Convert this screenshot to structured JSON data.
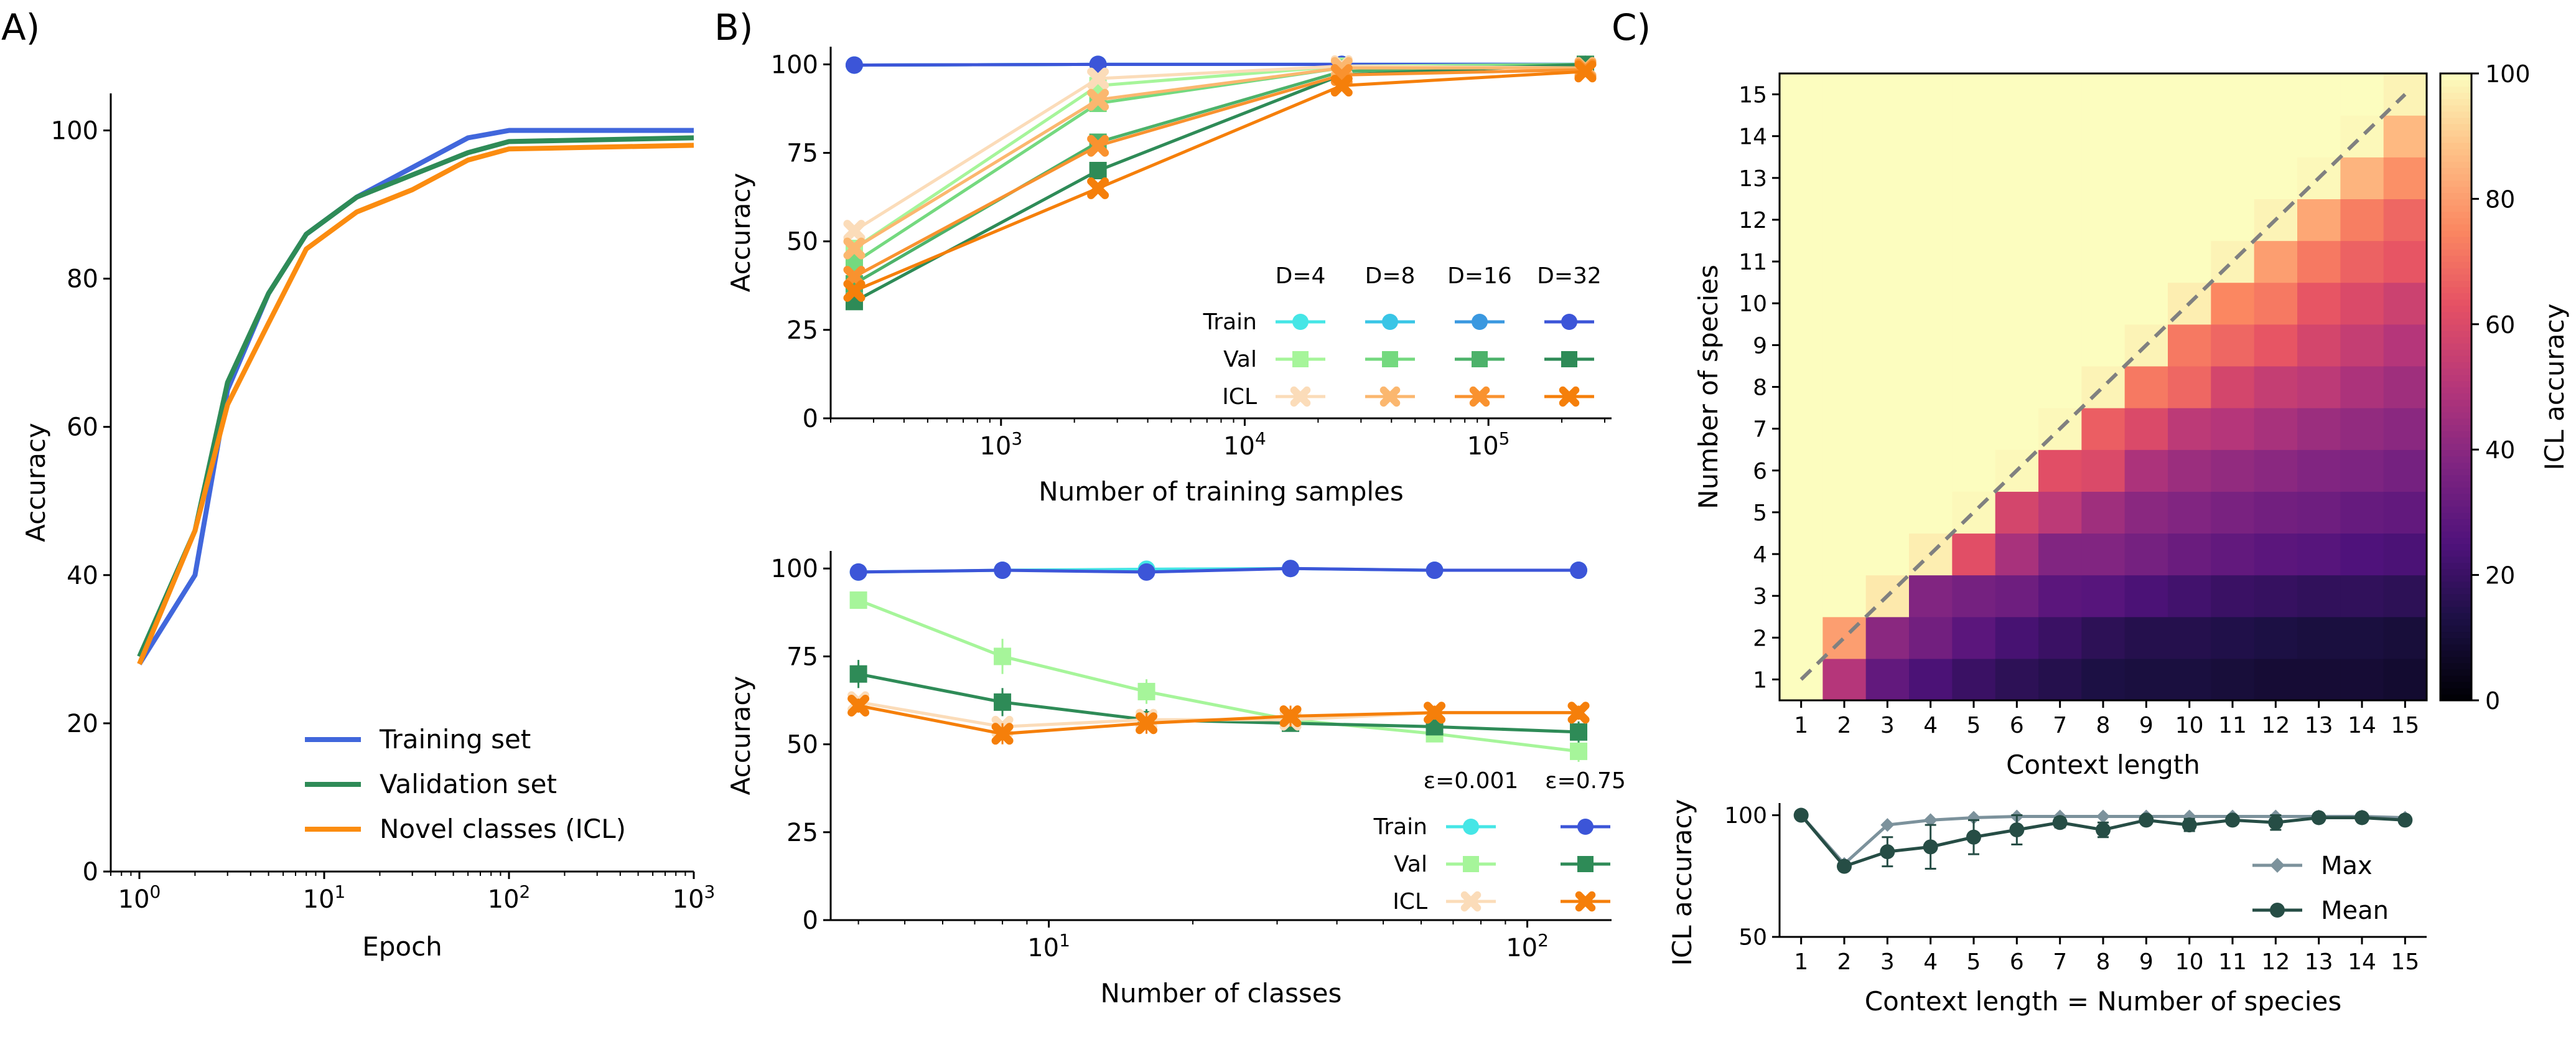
{
  "panel_labels": {
    "a": "A)",
    "b": "B)",
    "c": "C)"
  },
  "colors": {
    "train": [
      "#45e6e6",
      "#39c5e6",
      "#3a98e0",
      "#3c55d8"
    ],
    "val": [
      "#a6f59a",
      "#74d97f",
      "#4cb26a",
      "#2e8b57"
    ],
    "icl": [
      "#fbdcb9",
      "#fbb76f",
      "#f9922f",
      "#f57f0a"
    ],
    "panelA": {
      "train": "#4167dc",
      "val": "#2e8b57",
      "icl": "#fb8c10"
    },
    "mean": "#264d45",
    "max": "#7c929c",
    "diag": "#808080"
  },
  "chart_data": [
    {
      "id": "A",
      "type": "line",
      "xlabel": "Epoch",
      "ylabel": "Accuracy",
      "xscale": "log",
      "xlim": [
        0.7,
        1000
      ],
      "ylim": [
        0,
        105
      ],
      "yticks": [
        0,
        20,
        40,
        60,
        80,
        100
      ],
      "xtick_labels": [
        {
          "base": "10",
          "exp": "0"
        },
        {
          "base": "10",
          "exp": "1"
        },
        {
          "base": "10",
          "exp": "2"
        },
        {
          "base": "10",
          "exp": "3"
        }
      ],
      "legend": [
        "Training set",
        "Validation set",
        "Novel classes (ICL)"
      ],
      "legend_loc": "lower-right",
      "series": [
        {
          "group": "train",
          "x": [
            1,
            2,
            3,
            5,
            8,
            15,
            30,
            60,
            100,
            1000
          ],
          "y": [
            28,
            40,
            65,
            78,
            86,
            91,
            95,
            99,
            100,
            100
          ]
        },
        {
          "group": "val",
          "x": [
            1,
            2,
            3,
            5,
            8,
            15,
            30,
            60,
            100,
            1000
          ],
          "y": [
            29,
            46,
            66,
            78,
            86,
            91,
            94,
            97,
            98.5,
            99
          ]
        },
        {
          "group": "icl",
          "x": [
            1,
            2,
            3,
            5,
            8,
            15,
            30,
            60,
            100,
            1000
          ],
          "y": [
            28,
            46,
            63,
            74,
            84,
            89,
            92,
            96,
            97.5,
            98
          ]
        }
      ]
    },
    {
      "id": "B1",
      "type": "line",
      "xlabel": "Number of training samples",
      "ylabel": "Accuracy",
      "xscale": "log",
      "xlim": [
        200,
        320000
      ],
      "ylim": [
        0,
        105
      ],
      "yticks": [
        0,
        25,
        50,
        75,
        100
      ],
      "xtick_labels": [
        {
          "base": "10",
          "exp": "3"
        },
        {
          "base": "10",
          "exp": "4"
        },
        {
          "base": "10",
          "exp": "5"
        }
      ],
      "legend_cols": [
        "D=4",
        "D=8",
        "D=16",
        "D=32"
      ],
      "legend_rows": [
        "Train",
        "Val",
        "ICL"
      ],
      "x": [
        250,
        2500,
        25000,
        250000
      ],
      "series": [
        {
          "group": "train",
          "shade": 0,
          "y": [
            99.8,
            100,
            100,
            100
          ]
        },
        {
          "group": "train",
          "shade": 1,
          "y": [
            99.8,
            100,
            100,
            100
          ]
        },
        {
          "group": "train",
          "shade": 2,
          "y": [
            99.8,
            100,
            100,
            100
          ]
        },
        {
          "group": "train",
          "shade": 3,
          "y": [
            99.8,
            100,
            100,
            100
          ]
        },
        {
          "group": "val",
          "shade": 0,
          "y": [
            48,
            94,
            99.5,
            100
          ]
        },
        {
          "group": "val",
          "shade": 1,
          "y": [
            44,
            89,
            99,
            100
          ]
        },
        {
          "group": "val",
          "shade": 2,
          "y": [
            38,
            78,
            98,
            100
          ]
        },
        {
          "group": "val",
          "shade": 3,
          "y": [
            33,
            70,
            97,
            100
          ]
        },
        {
          "group": "icl",
          "shade": 0,
          "y": [
            53,
            96,
            99.5,
            99
          ]
        },
        {
          "group": "icl",
          "shade": 1,
          "y": [
            48,
            90,
            99,
            99
          ]
        },
        {
          "group": "icl",
          "shade": 2,
          "y": [
            40,
            77,
            97,
            98.5
          ]
        },
        {
          "group": "icl",
          "shade": 3,
          "y": [
            36,
            65,
            94,
            98
          ]
        }
      ]
    },
    {
      "id": "B2",
      "type": "line",
      "xlabel": "Number of classes",
      "ylabel": "Accuracy",
      "xscale": "log",
      "xlim": [
        3.5,
        150
      ],
      "ylim": [
        0,
        105
      ],
      "yticks": [
        0,
        25,
        50,
        75,
        100
      ],
      "xtick_labels": [
        {
          "base": "10",
          "exp": "1"
        },
        {
          "base": "10",
          "exp": "2"
        }
      ],
      "legend_cols": [
        "ε=0.001",
        "ε=0.75"
      ],
      "legend_rows": [
        "Train",
        "Val",
        "ICL"
      ],
      "x": [
        4,
        8,
        16,
        32,
        64,
        128
      ],
      "series": [
        {
          "group": "train",
          "shade": 0,
          "y": [
            99,
            99.5,
            99.8,
            100,
            99.5,
            99.5
          ]
        },
        {
          "group": "train",
          "shade": 3,
          "y": [
            99,
            99.5,
            99,
            100,
            99.5,
            99.5
          ]
        },
        {
          "group": "val",
          "shade": 0,
          "y": [
            91,
            75,
            65,
            57,
            53,
            48
          ],
          "err": [
            2,
            5,
            3.5,
            2,
            2,
            3
          ]
        },
        {
          "group": "val",
          "shade": 3,
          "y": [
            70,
            62,
            57,
            56,
            55,
            53.5
          ],
          "err": [
            4,
            4,
            3,
            2,
            2,
            3
          ]
        },
        {
          "group": "icl",
          "shade": 0,
          "y": [
            62,
            55,
            57,
            57,
            59,
            59
          ]
        },
        {
          "group": "icl",
          "shade": 3,
          "y": [
            61,
            53,
            56,
            58,
            59,
            59
          ],
          "err": [
            2,
            3,
            3,
            3,
            2,
            2
          ]
        }
      ]
    },
    {
      "id": "C1",
      "type": "heatmap",
      "xlabel": "Context length",
      "ylabel": "Number of species",
      "colorbar_label": "ICL accuracy",
      "colorbar_ticks": [
        0,
        20,
        40,
        60,
        80,
        100
      ],
      "labels": [
        1,
        2,
        3,
        4,
        5,
        6,
        7,
        8,
        9,
        10,
        11,
        12,
        13,
        14,
        15
      ],
      "fill_above_diagonal": 100,
      "rows": [
        [
          100,
          50,
          30,
          24,
          20,
          17,
          15,
          13,
          12,
          12,
          11,
          10,
          10,
          10,
          9
        ],
        [
          null,
          80,
          40,
          34,
          28,
          23,
          20,
          17,
          15,
          15,
          14,
          13,
          12,
          12,
          11
        ],
        [
          null,
          null,
          96,
          38,
          35,
          33,
          28,
          27,
          24,
          22,
          20,
          19,
          18,
          18,
          17
        ],
        [
          null,
          null,
          null,
          97,
          62,
          47,
          38,
          38,
          35,
          32,
          30,
          28,
          27,
          25,
          24
        ],
        [
          null,
          null,
          null,
          null,
          99,
          58,
          52,
          45,
          40,
          38,
          36,
          34,
          33,
          31,
          30
        ],
        [
          null,
          null,
          null,
          null,
          null,
          99,
          62,
          60,
          48,
          44,
          42,
          40,
          38,
          37,
          35
        ],
        [
          null,
          null,
          null,
          null,
          null,
          null,
          99,
          66,
          60,
          52,
          50,
          47,
          44,
          42,
          40
        ],
        [
          null,
          null,
          null,
          null,
          null,
          null,
          null,
          98,
          72,
          68,
          58,
          54,
          52,
          48,
          45
        ],
        [
          null,
          null,
          null,
          null,
          null,
          null,
          null,
          null,
          98,
          72,
          68,
          64,
          58,
          54,
          50
        ],
        [
          null,
          null,
          null,
          null,
          null,
          null,
          null,
          null,
          null,
          97,
          75,
          72,
          64,
          60,
          56
        ],
        [
          null,
          null,
          null,
          null,
          null,
          null,
          null,
          null,
          null,
          null,
          98,
          80,
          72,
          67,
          64
        ],
        [
          null,
          null,
          null,
          null,
          null,
          null,
          null,
          null,
          null,
          null,
          null,
          98,
          82,
          73,
          68
        ],
        [
          null,
          null,
          null,
          null,
          null,
          null,
          null,
          null,
          null,
          null,
          null,
          null,
          99,
          85,
          77
        ],
        [
          null,
          null,
          null,
          null,
          null,
          null,
          null,
          null,
          null,
          null,
          null,
          null,
          null,
          99,
          86
        ],
        [
          null,
          null,
          null,
          null,
          null,
          null,
          null,
          null,
          null,
          null,
          null,
          null,
          null,
          null,
          98
        ]
      ]
    },
    {
      "id": "C2",
      "type": "line",
      "xlabel": "Context length = Number of species",
      "ylabel": "ICL accuracy",
      "ylim": [
        50,
        105
      ],
      "yticks": [
        50,
        100
      ],
      "x": [
        1,
        2,
        3,
        4,
        5,
        6,
        7,
        8,
        9,
        10,
        11,
        12,
        13,
        14,
        15
      ],
      "legend": [
        "Max",
        "Mean"
      ],
      "legend_loc": "lower-right",
      "series": [
        {
          "name": "Max",
          "y": [
            100,
            80,
            96,
            98,
            99,
            99.5,
            99.5,
            99.5,
            99.5,
            99.5,
            99.5,
            99.5,
            99.5,
            99.5,
            99
          ]
        },
        {
          "name": "Mean",
          "y": [
            100,
            79,
            85,
            87,
            91,
            94,
            97,
            94,
            98,
            96,
            98,
            97,
            99,
            99,
            98
          ],
          "err": [
            0,
            1.5,
            6,
            9,
            7,
            6,
            2,
            3,
            1.5,
            2.5,
            1.5,
            3,
            1,
            1,
            1.5
          ]
        }
      ]
    }
  ]
}
